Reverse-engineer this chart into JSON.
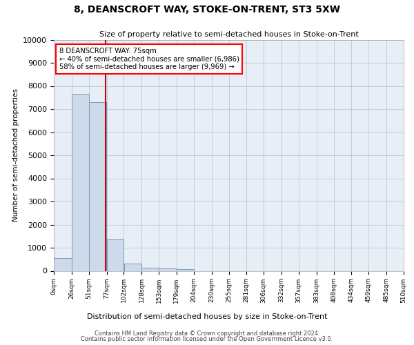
{
  "title": "8, DEANSCROFT WAY, STOKE-ON-TRENT, ST3 5XW",
  "subtitle": "Size of property relative to semi-detached houses in Stoke-on-Trent",
  "xlabel": "Distribution of semi-detached houses by size in Stoke-on-Trent",
  "ylabel": "Number of semi-detached properties",
  "bar_values": [
    550,
    7650,
    7300,
    1370,
    310,
    145,
    110,
    75,
    0,
    0,
    0,
    0,
    0,
    0,
    0,
    0,
    0,
    0,
    0,
    0
  ],
  "bin_edges": [
    0,
    26,
    51,
    77,
    102,
    128,
    153,
    179,
    204,
    230,
    255,
    281,
    306,
    332,
    357,
    383,
    408,
    434,
    459,
    485,
    510
  ],
  "tick_labels": [
    "0sqm",
    "26sqm",
    "51sqm",
    "77sqm",
    "102sqm",
    "128sqm",
    "153sqm",
    "179sqm",
    "204sqm",
    "230sqm",
    "255sqm",
    "281sqm",
    "306sqm",
    "332sqm",
    "357sqm",
    "383sqm",
    "408sqm",
    "434sqm",
    "459sqm",
    "485sqm",
    "510sqm"
  ],
  "property_line_x": 75,
  "bar_color": "#ccdaeb",
  "bar_edge_color": "#7799bb",
  "line_color": "#cc0000",
  "ylim": [
    0,
    10000
  ],
  "yticks": [
    0,
    1000,
    2000,
    3000,
    4000,
    5000,
    6000,
    7000,
    8000,
    9000,
    10000
  ],
  "annotation_title": "8 DEANSCROFT WAY: 75sqm",
  "annotation_line1": "← 40% of semi-detached houses are smaller (6,986)",
  "annotation_line2": "58% of semi-detached houses are larger (9,969) →",
  "footer_line1": "Contains HM Land Registry data © Crown copyright and database right 2024.",
  "footer_line2": "Contains public sector information licensed under the Open Government Licence v3.0.",
  "bg_color": "#ffffff",
  "axes_bg_color": "#e8eef6",
  "grid_color": "#b8c8d8"
}
